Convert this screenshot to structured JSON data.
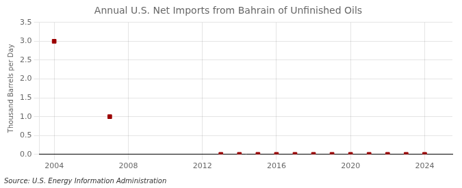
{
  "chart_data": {
    "type": "scatter",
    "title": "Annual U.S. Net Imports from Bahrain of Unfinished Oils",
    "ylabel": "Thousand Barrels per Day",
    "annotations": [
      "Source: U.S. Energy Information Administration"
    ],
    "x": [
      2004,
      2007,
      2013,
      2014,
      2015,
      2016,
      2017,
      2018,
      2019,
      2020,
      2021,
      2022,
      2023,
      2024
    ],
    "values": [
      3.0,
      1.0,
      0.0,
      0.0,
      0.0,
      0.0,
      0.0,
      0.0,
      0.0,
      0.0,
      0.0,
      0.0,
      0.0,
      0.0
    ],
    "color": "#9b0000",
    "marker": "square",
    "xlim": [
      2003.2,
      2025.5
    ],
    "xticks": [
      2004,
      2008,
      2012,
      2016,
      2020,
      2024
    ],
    "ylim": [
      0.0,
      3.5
    ],
    "yticks": [
      {
        "value": 0,
        "label": "0.0"
      },
      0.5,
      {
        "value": 1,
        "label": "1.0"
      },
      1.5,
      {
        "value": 2,
        "label": "2.0"
      },
      2.5,
      {
        "value": 3,
        "label": "3.0"
      },
      3.5
    ],
    "grid": true
  }
}
